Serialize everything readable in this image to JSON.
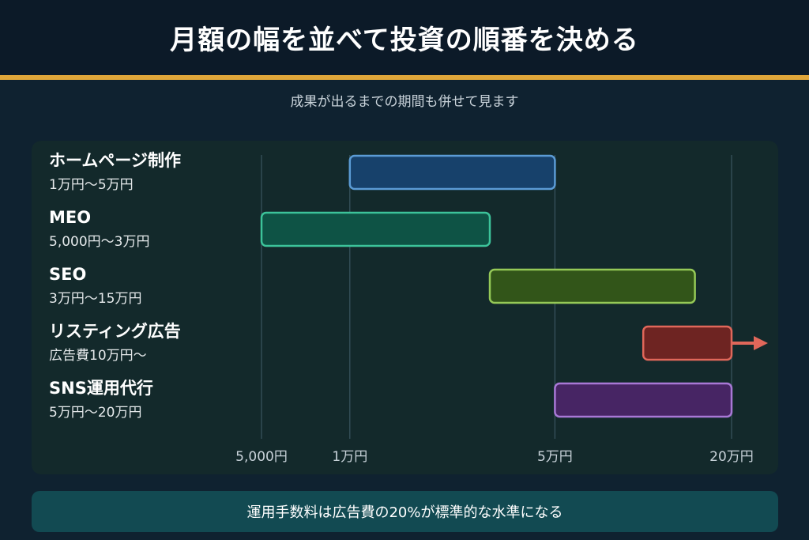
{
  "title": "月額の幅を並べて投資の順番を決める",
  "subtitle": "成果が出るまでの期間も併せて見ます",
  "footer_note": "運用手数料は広告費の20%が標準的な水準になる",
  "colors": {
    "accent_rule": "#e0a63a",
    "homepage_fill": "#17416b",
    "homepage_stroke": "#5b9bd5",
    "meo_fill": "#0e5345",
    "meo_stroke": "#3cc39a",
    "seo_fill": "#325519",
    "seo_stroke": "#95c957",
    "listing_fill": "#6e2422",
    "listing_stroke": "#e0675a",
    "sns_fill": "#472564",
    "sns_stroke": "#a878d6"
  },
  "chart_data": {
    "type": "range-bar",
    "x_scale": "log",
    "x_unit": "円/月",
    "xlim": [
      5000,
      200000
    ],
    "x_ticks": [
      {
        "value": 5000,
        "label": "5,000円"
      },
      {
        "value": 10000,
        "label": "1万円"
      },
      {
        "value": 50000,
        "label": "5万円"
      },
      {
        "value": 200000,
        "label": "20万円"
      }
    ],
    "grid": true,
    "series": [
      {
        "name": "ホームページ制作",
        "range_label": "1万円〜5万円",
        "min": 10000,
        "max": 50000,
        "open_ended": false
      },
      {
        "name": "MEO",
        "range_label": "5,000円〜3万円",
        "min": 5000,
        "max": 30000,
        "open_ended": false
      },
      {
        "name": "SEO",
        "range_label": "3万円〜15万円",
        "min": 30000,
        "max": 150000,
        "open_ended": false
      },
      {
        "name": "リスティング広告",
        "range_label": "広告費10万円〜",
        "min": 100000,
        "max": 200000,
        "open_ended": true
      },
      {
        "name": "SNS運用代行",
        "range_label": "5万円〜20万円",
        "min": 50000,
        "max": 200000,
        "open_ended": false
      }
    ]
  }
}
